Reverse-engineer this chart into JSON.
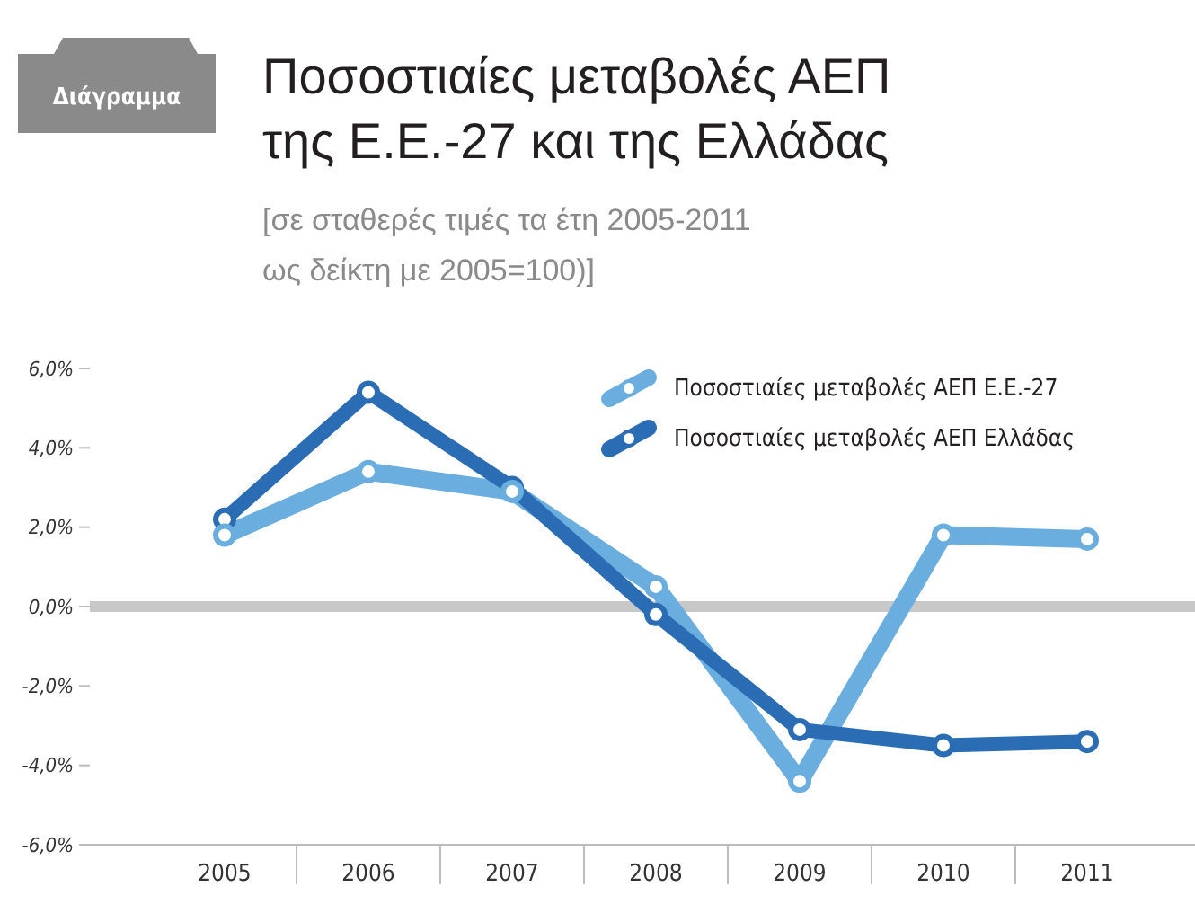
{
  "chart_data": {
    "type": "line",
    "title": "Ποσοστιαίες μεταβολές ΑΕΠ της Ε.Ε.-27 και της Ελλάδας",
    "subtitle": "[σε σταθερές τιμές τα έτη 2005-2011 ως δείκτη με 2005=100)]",
    "annotations": [
      "Διάγραμμα"
    ],
    "categories": [
      "2005",
      "2006",
      "2007",
      "2008",
      "2009",
      "2010",
      "2011"
    ],
    "series": [
      {
        "name": "Ποσοστιαίες μεταβολές ΑΕΠ Ε.Ε.-27",
        "color": "#6aaee0",
        "values": [
          1.8,
          3.4,
          2.9,
          0.5,
          -4.4,
          1.8,
          1.7
        ]
      },
      {
        "name": "Ποσοστιαίες μεταβολές ΑΕΠ Ελλάδας",
        "color": "#2a6db5",
        "values": [
          2.2,
          5.4,
          3.0,
          -0.2,
          -3.1,
          -3.5,
          -3.4
        ]
      }
    ],
    "ylim": [
      -6,
      6
    ],
    "yticks": [
      {
        "value": -6,
        "label": "-6,0%"
      },
      {
        "value": -4,
        "label": "-4,0%"
      },
      {
        "value": -2,
        "label": "-2,0%"
      },
      {
        "value": 0,
        "label": "0,0%"
      },
      {
        "value": 2,
        "label": "2,0%"
      },
      {
        "value": 4,
        "label": "4,0%"
      },
      {
        "value": 6,
        "label": "6,0%"
      }
    ],
    "ref_lines": [
      {
        "axis": "y",
        "value": 0,
        "color": "#c8c8c8"
      }
    ],
    "grid": false,
    "legend": "top right",
    "marker": "circle",
    "line_style": "solid"
  }
}
